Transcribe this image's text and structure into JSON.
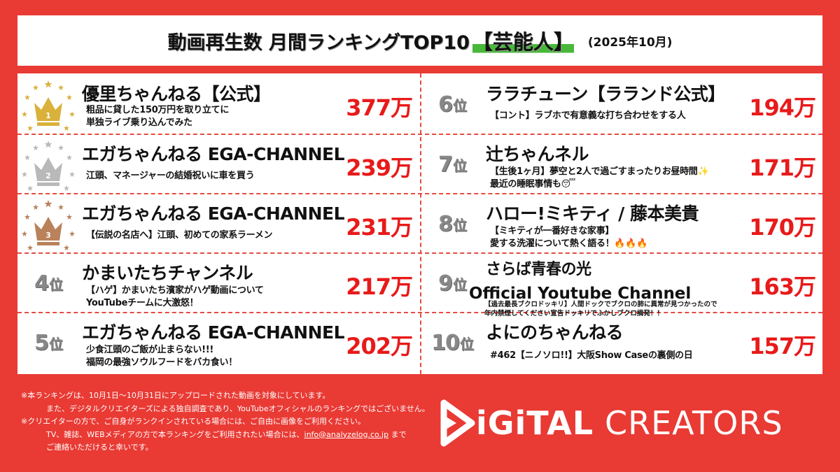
{
  "header": {
    "title_main": "動画再生数 月間ランキングTOP10",
    "title_category": "【芸能人】",
    "title_period": "(2025年10月)"
  },
  "colors": {
    "background": "#e93a34",
    "accent_red": "#e81a1a",
    "category_highlight": "#48b83a",
    "gold": "#d9b13b",
    "silver": "#b9b9b9",
    "bronze": "#b9825a"
  },
  "ranking": [
    {
      "rank": "1",
      "channel": "優里ちゃんねる【公式】",
      "video": "粗品に貸した150万円を取り立てに\n単独ライブ乗り込んでみた",
      "views": "377万",
      "icon": "gold-crown-icon"
    },
    {
      "rank": "2",
      "channel": "エガちゃんねる EGA-CHANNEL",
      "video": "江頭、マネージャーの結婚祝いに車を買う",
      "views": "239万",
      "icon": "silver-crown-icon"
    },
    {
      "rank": "3",
      "channel": "エガちゃんねる EGA-CHANNEL",
      "video": "【伝説の名店へ】江頭、初めての家系ラーメン",
      "views": "231万",
      "icon": "bronze-crown-icon"
    },
    {
      "rank": "4",
      "rank_suffix": "位",
      "channel": "かまいたちチャンネル",
      "video": "【ハゲ】かまいたち濱家がハゲ動画について\nYouTubeチームに大激怒！",
      "views": "217万"
    },
    {
      "rank": "5",
      "rank_suffix": "位",
      "channel": "エガちゃんねる EGA-CHANNEL",
      "video": "少食江頭のご飯が止まらない!!!\n福岡の最強ソウルフードをバカ食い！",
      "views": "202万"
    },
    {
      "rank": "6",
      "rank_suffix": "位",
      "channel": "ララチューン【ラランド公式】",
      "video": "【コント】ラブホで有意義な打ち合わせをする人",
      "views": "194万"
    },
    {
      "rank": "7",
      "rank_suffix": "位",
      "channel": "辻ちゃんネル",
      "video": "【生後1ヶ月】夢空と2人で過ごすまったりお昼時間✨\n最近の睡眠事情も😴",
      "views": "171万"
    },
    {
      "rank": "8",
      "rank_suffix": "位",
      "channel": "ハロー!ミキティ / 藤本美貴",
      "video": "【ミキティが一番好きな家事】\n愛する洗濯について熱く語る！🔥🔥🔥",
      "views": "170万"
    },
    {
      "rank": "9",
      "rank_suffix": "位",
      "channel": "さらば青春の光",
      "channel_line2": "Official Youtube Channel",
      "video": "【過去最長ブクロドッキリ】人間ドックでブクロの肺に異常が見つかったので\n年内禁煙してください宣告ドッキリでふかしブクロ摘発！！",
      "views": "163万"
    },
    {
      "rank": "10",
      "rank_suffix": "位",
      "channel": "よにのちゃんねる",
      "video": "#462【ニノソロ!!】大阪Show Caseの裏側の日",
      "views": "157万"
    }
  ],
  "footer": {
    "note1": "※本ランキングは、10月1日～10月31日にアップロードされた動画を対象にしています。",
    "note2": "また、デジタルクリエイターズによる独自調査であり、YouTubeオフィシャルのランキングではございません。",
    "note3": "※クリエイターの方で、ご自身がランクインされている場合には、ご自由に画像をご利用ください。",
    "note4_pre": "TV、雑誌、WEBメディアの方で本ランキングをご利用されたい場合には、",
    "email": "info@analyzelog.co.jp",
    "note4_post": " まで",
    "note5": "ご連絡いただけると幸いです。"
  },
  "logo": {
    "part1": "iGiTAL",
    "part2": "CREATORS"
  }
}
